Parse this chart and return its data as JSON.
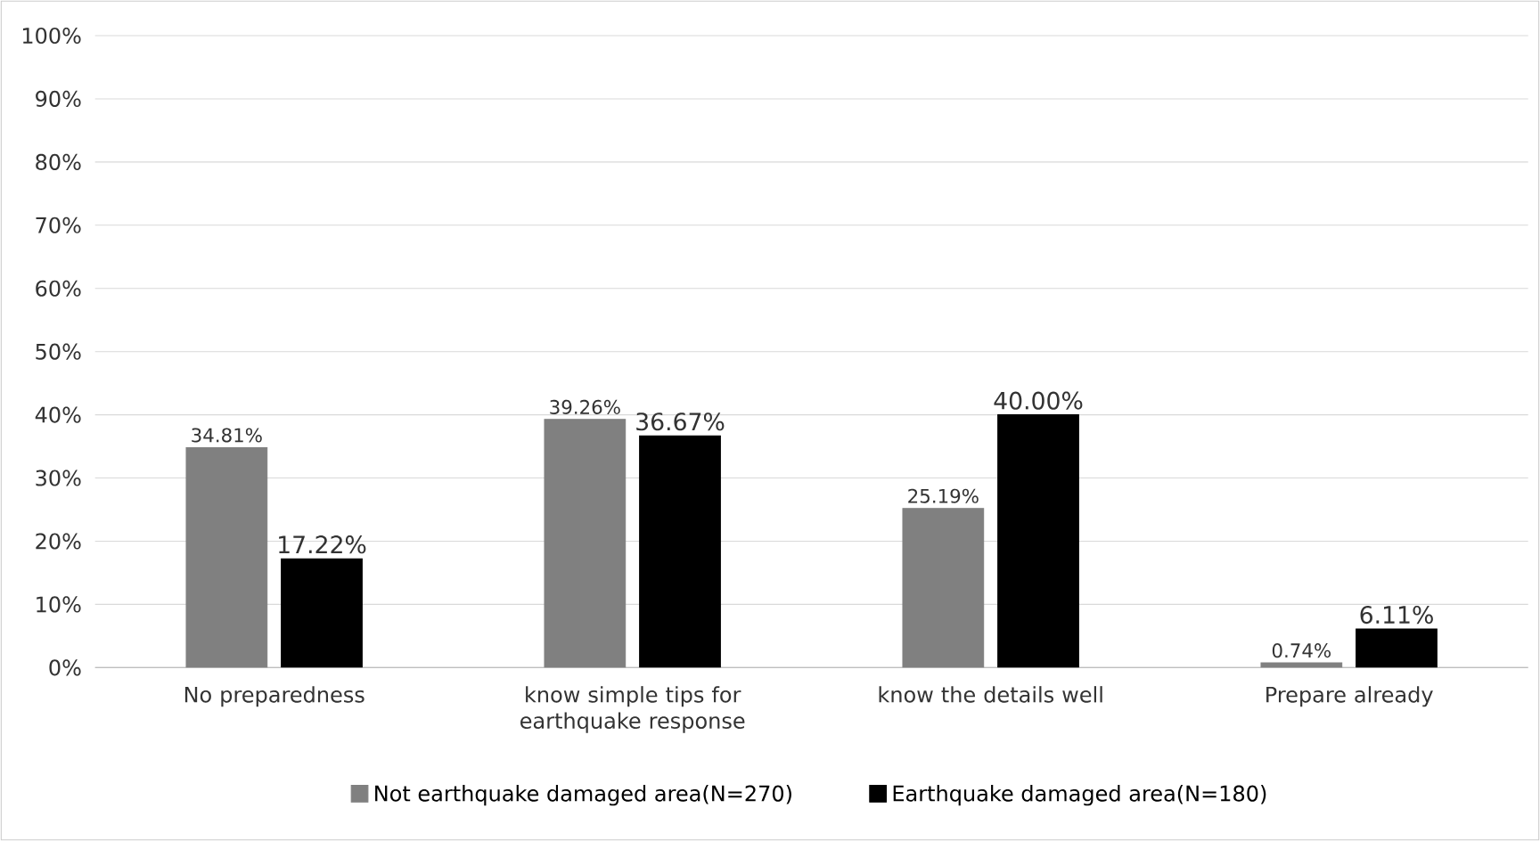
{
  "chart_data": {
    "type": "bar",
    "categories": [
      "No preparedness",
      "know simple tips for earthquake response",
      "know the details well",
      "Prepare already"
    ],
    "series": [
      {
        "name": "Not earthquake damaged area(N=270)",
        "color": "#808080",
        "values": [
          34.81,
          39.26,
          25.19,
          0.74
        ],
        "value_labels": [
          "34.81%",
          "39.26%",
          "25.19%",
          "0.74%"
        ]
      },
      {
        "name": "Earthquake damaged area(N=180)",
        "color": "#000000",
        "values": [
          17.22,
          36.67,
          40.0,
          6.11
        ],
        "value_labels": [
          "17.22%",
          "36.67%",
          "40.00%",
          "6.11%"
        ]
      }
    ],
    "ylim": [
      0,
      100
    ],
    "yticks": [
      {
        "value": 0,
        "label": "0%"
      },
      {
        "value": 10,
        "label": "10%"
      },
      {
        "value": 20,
        "label": "20%"
      },
      {
        "value": 30,
        "label": "30%"
      },
      {
        "value": 40,
        "label": "40%"
      },
      {
        "value": 50,
        "label": "50%"
      },
      {
        "value": 60,
        "label": "60%"
      },
      {
        "value": 70,
        "label": "70%"
      },
      {
        "value": 80,
        "label": "80%"
      },
      {
        "value": 90,
        "label": "90%"
      },
      {
        "value": 100,
        "label": "100%"
      }
    ],
    "grid": "y",
    "legend": "bottom"
  }
}
